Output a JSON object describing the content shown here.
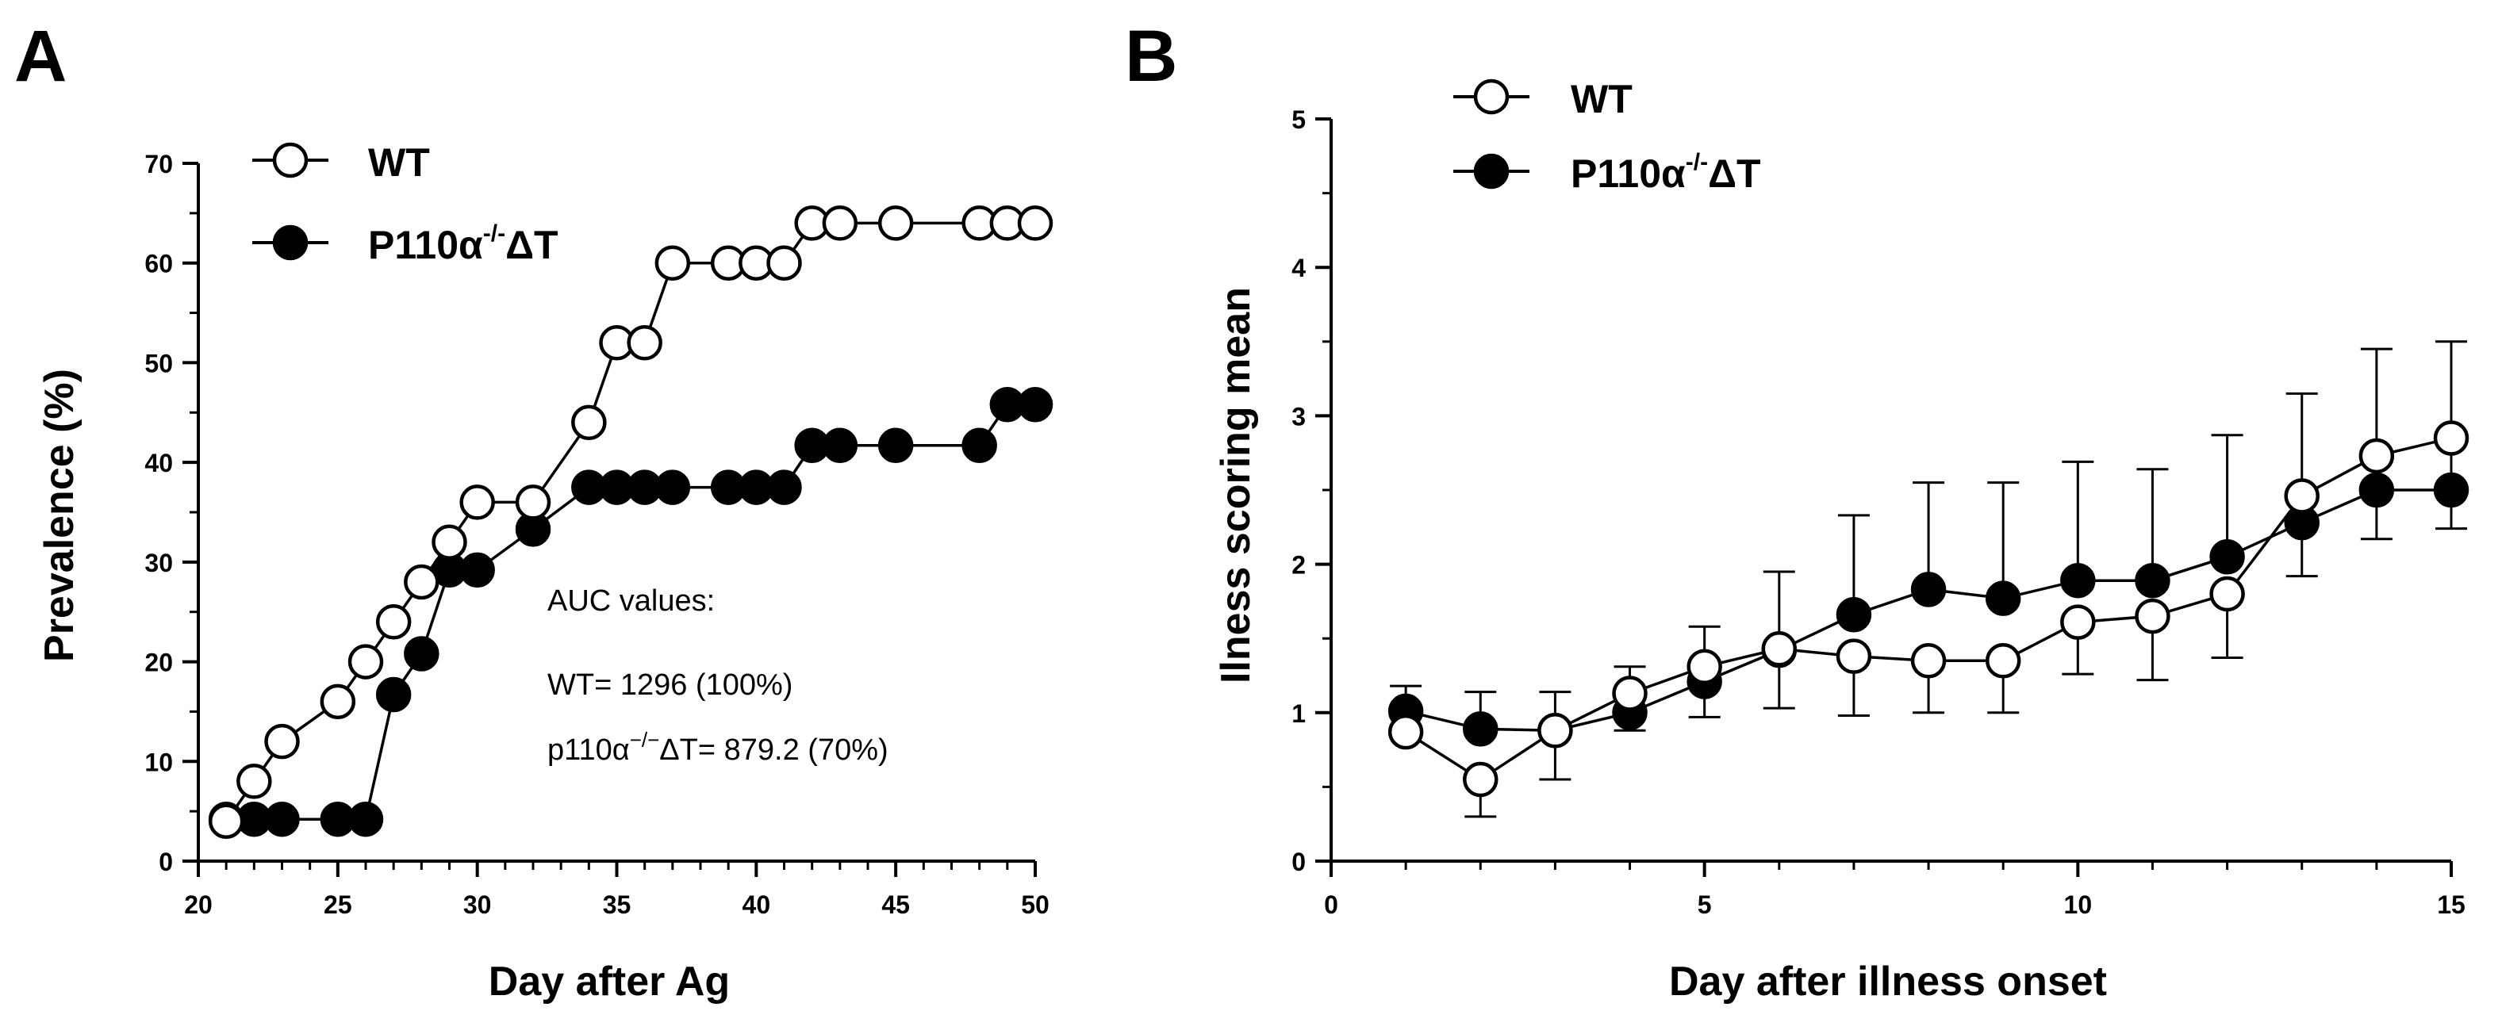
{
  "chart_data": [
    {
      "panel": "A",
      "type": "line",
      "title": "",
      "xlabel": "Day after Ag",
      "ylabel": "Prevalence (%)",
      "xlim": [
        20,
        50
      ],
      "ylim": [
        0,
        70
      ],
      "xticks": [
        20,
        25,
        30,
        35,
        40,
        45,
        50
      ],
      "yticks": [
        0,
        10,
        20,
        30,
        40,
        50,
        60,
        70
      ],
      "legend_position": "top-left",
      "colors": {
        "line": "#000000",
        "marker_open": "#ffffff",
        "marker_filled": "#000000"
      },
      "series": [
        {
          "name": "WT",
          "marker": "open-circle",
          "x": [
            21,
            22,
            23,
            25,
            26,
            27,
            28,
            29,
            30,
            32,
            34,
            35,
            36,
            37,
            39,
            40,
            41,
            42,
            43,
            45,
            48,
            49,
            50
          ],
          "y": [
            4,
            8,
            12,
            16,
            20,
            24,
            28,
            32,
            36,
            36,
            44,
            52,
            52,
            60,
            60,
            60,
            60,
            64,
            64,
            64,
            64,
            64,
            64
          ]
        },
        {
          "name": "P110α",
          "name_sup": "-/-",
          "name_suffix": "ΔT",
          "marker": "filled-circle",
          "x": [
            21,
            22,
            23,
            25,
            26,
            27,
            28,
            29,
            30,
            32,
            34,
            35,
            36,
            37,
            39,
            40,
            41,
            42,
            43,
            45,
            48,
            49,
            50
          ],
          "y": [
            4.2,
            4.2,
            4.2,
            4.2,
            4.2,
            16.7,
            20.8,
            29.2,
            29.2,
            33.3,
            37.5,
            37.5,
            37.5,
            37.5,
            37.5,
            37.5,
            37.5,
            41.7,
            41.7,
            41.7,
            41.7,
            45.8,
            45.8
          ]
        }
      ],
      "annotations": {
        "heading": "AUC values:",
        "wt_line": "WT= 1296 (100%)",
        "ko_prefix": "p110α",
        "ko_sup": "−/−",
        "ko_rest": "ΔT= 879.2 (70%)"
      }
    },
    {
      "panel": "B",
      "type": "line",
      "title": "",
      "xlabel": "Day after illness onset",
      "ylabel": "Ilness scoring mean",
      "xlim": [
        0,
        15
      ],
      "ylim": [
        0,
        5
      ],
      "xticks": [
        0,
        5,
        10,
        15
      ],
      "yticks": [
        0,
        1,
        2,
        3,
        4,
        5
      ],
      "legend_position": "top-left",
      "colors": {
        "line": "#000000",
        "marker_open": "#ffffff",
        "marker_filled": "#000000"
      },
      "series": [
        {
          "name": "WT",
          "marker": "open-circle",
          "x": [
            1,
            2,
            3,
            4,
            5,
            6,
            7,
            8,
            9,
            10,
            11,
            12,
            13,
            14,
            15
          ],
          "y": [
            0.87,
            0.55,
            0.88,
            1.13,
            1.31,
            1.43,
            1.38,
            1.35,
            1.35,
            1.61,
            1.65,
            1.8,
            2.46,
            2.73,
            2.85
          ],
          "err_low": [
            0.87,
            0.3,
            0.55,
            0.88,
            0.97,
            1.03,
            0.98,
            1.0,
            1.0,
            1.26,
            1.22,
            1.37,
            1.92,
            2.17,
            2.24
          ]
        },
        {
          "name": "P110α",
          "name_sup": "-/-",
          "name_suffix": "ΔT",
          "marker": "filled-circle",
          "x": [
            1,
            2,
            3,
            4,
            5,
            6,
            7,
            8,
            9,
            10,
            11,
            12,
            13,
            14,
            15
          ],
          "y": [
            1.01,
            0.89,
            0.88,
            1.0,
            1.21,
            1.42,
            1.66,
            1.83,
            1.77,
            1.89,
            1.89,
            2.05,
            2.28,
            2.5,
            2.5
          ],
          "err_high": [
            1.18,
            1.14,
            1.14,
            1.31,
            1.58,
            1.95,
            2.33,
            2.55,
            2.55,
            2.69,
            2.64,
            2.87,
            3.15,
            3.45,
            3.5
          ]
        }
      ]
    }
  ]
}
